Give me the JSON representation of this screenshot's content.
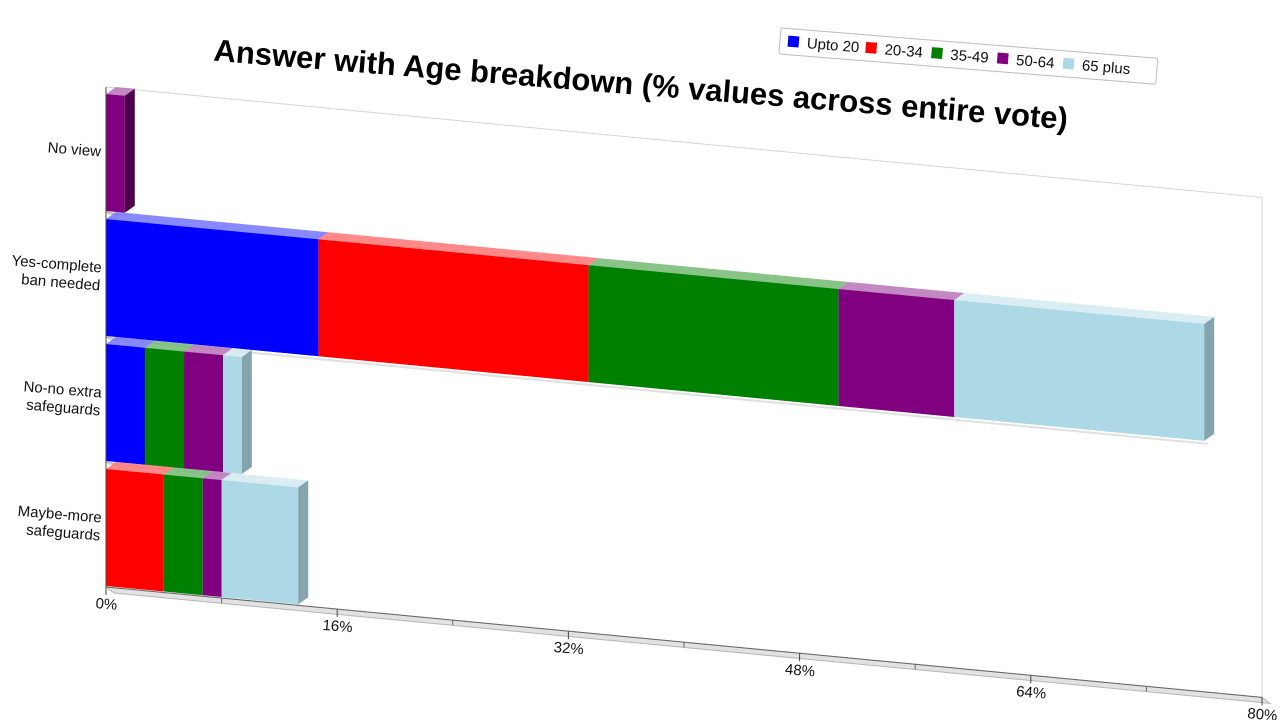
{
  "chart_data": {
    "type": "bar",
    "orientation": "horizontal",
    "stacked": true,
    "title": "Answer with Age breakdown (% values across entire vote)",
    "categories": [
      "No view",
      "Yes-complete\nban needed",
      "No-no extra\nsafeguards",
      "Maybe-more\nsafeguards"
    ],
    "series": [
      {
        "name": "Upto 20",
        "color": "#0000ff",
        "values": [
          0,
          14.7,
          2.7,
          0
        ]
      },
      {
        "name": "20-34",
        "color": "#ff0000",
        "values": [
          0,
          18.7,
          0,
          4.0
        ]
      },
      {
        "name": "35-49",
        "color": "#008000",
        "values": [
          0,
          17.3,
          2.7,
          2.7
        ]
      },
      {
        "name": "50-64",
        "color": "#800080",
        "values": [
          1.3,
          8.0,
          2.7,
          1.3
        ]
      },
      {
        "name": "65 plus",
        "color": "#add8e6",
        "values": [
          0,
          17.3,
          1.3,
          5.3
        ]
      }
    ],
    "xlim": [
      0,
      80
    ],
    "xticks": [
      "0%",
      "16%",
      "32%",
      "48%",
      "64%",
      "80%"
    ],
    "legend_position": "top-right"
  }
}
